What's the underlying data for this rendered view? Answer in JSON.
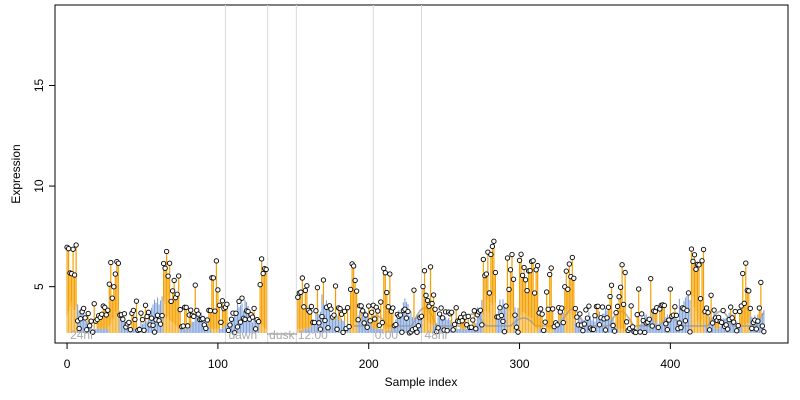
{
  "chart_data": {
    "type": "line",
    "title": "",
    "xlabel": "Sample index",
    "ylabel": "Expression",
    "xlim": [
      -8,
      478
    ],
    "ylim": [
      2.2,
      19
    ],
    "grid": false,
    "x_ticks": [
      0,
      100,
      200,
      300,
      400
    ],
    "y_ticks": [
      5,
      10,
      15
    ],
    "x_tick_labels": [
      "0",
      "100",
      "200",
      "300",
      "400"
    ],
    "y_tick_labels": [
      "5",
      "10",
      "15"
    ],
    "baseline": 2.7,
    "region_boundaries": [
      105,
      133,
      152,
      203,
      235
    ],
    "region_labels": [
      {
        "text": "24hr",
        "x": 2
      },
      {
        "text": "dawn",
        "x": 107
      },
      {
        "text": "dusk",
        "x": 134
      },
      {
        "text": "12:00",
        "x": 153
      },
      {
        "text": "0:00",
        "x": 204
      },
      {
        "text": "48hr",
        "x": 237
      }
    ],
    "highlight_segments": [
      [
        0,
        6
      ],
      [
        28,
        34
      ],
      [
        64,
        74
      ],
      [
        96,
        100
      ],
      [
        128,
        132
      ],
      [
        150,
        156
      ],
      [
        188,
        192
      ],
      [
        210,
        214
      ],
      [
        236,
        242
      ],
      [
        276,
        284
      ],
      [
        292,
        296
      ],
      [
        300,
        312
      ],
      [
        318,
        322
      ],
      [
        330,
        336
      ],
      [
        366,
        370
      ],
      [
        414,
        422
      ],
      [
        448,
        452
      ]
    ],
    "gray_segment": [
      133,
      152
    ],
    "colors": {
      "fit": "#6b93d6",
      "highlight": "#f5a000",
      "gray": "#999999",
      "point_fill": "#ffffff",
      "point_stroke": "#000000",
      "region_line": "#d9d9d9",
      "axis": "#000000"
    }
  }
}
